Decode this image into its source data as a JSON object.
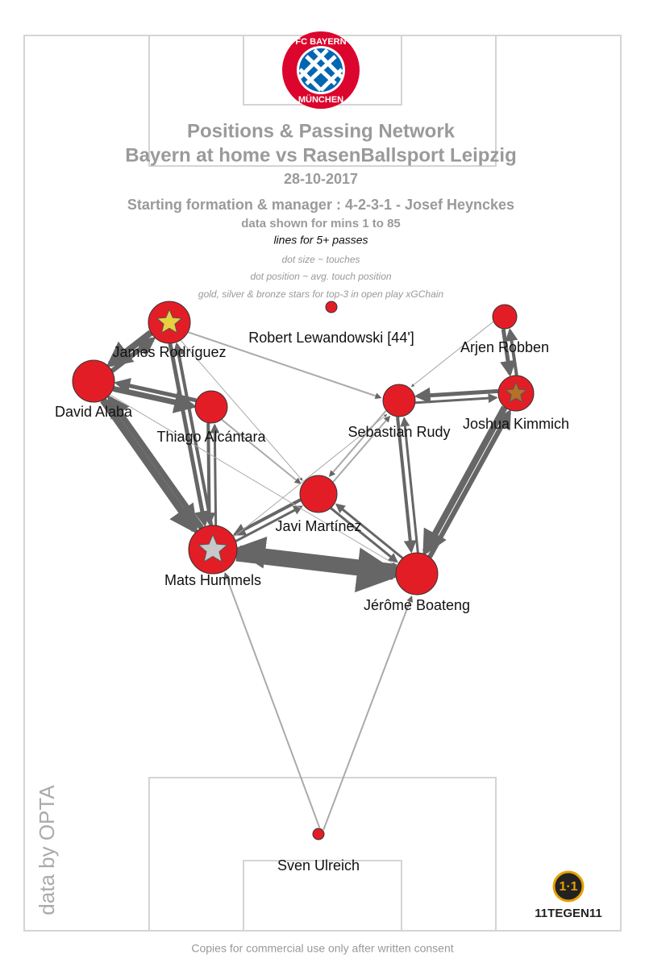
{
  "header": {
    "title": "Positions & Passing Network",
    "subtitle": "Bayern at home vs RasenBallsport Leipzig",
    "date": "28-10-2017",
    "formation": "Starting formation & manager : 4-2-3-1 - Josef Heynckes",
    "minutes": "data shown for mins 1 to 85",
    "lines_note": "lines for 5+ passes",
    "notes": [
      "dot size ~ touches",
      "dot position ~ avg. touch position",
      "gold, silver & bronze stars for top-3 in open play xGChain"
    ]
  },
  "crest": {
    "top": "FC BAYERN",
    "bottom": "MÜNCHEN"
  },
  "nodes": [
    {
      "label": "Robert Lewandowski [44']"
    },
    {
      "label": "James Rodríguez"
    },
    {
      "label": "David Alaba"
    },
    {
      "label": "Thiago Alcántara"
    },
    {
      "label": "Arjen Robben"
    },
    {
      "label": "Sebastian Rudy"
    },
    {
      "label": "Joshua Kimmich"
    },
    {
      "label": "Javi Martínez"
    },
    {
      "label": "Mats Hummels"
    },
    {
      "label": "Jérôme Boateng"
    },
    {
      "label": "Sven Ulreich"
    }
  ],
  "credit": "data by OPTA",
  "brand": "11TEGEN11",
  "footer": "Copies for commercial use only after written consent"
}
